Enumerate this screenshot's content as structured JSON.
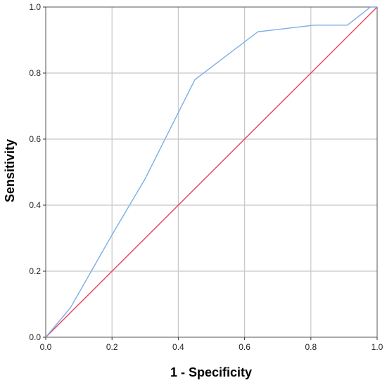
{
  "chart_data": {
    "type": "line",
    "title": "",
    "xlabel": "1 - Specificity",
    "ylabel": "Sensitivity",
    "xlim": [
      0,
      1
    ],
    "ylim": [
      0,
      1
    ],
    "x_ticks": [
      "0.0",
      "0.2",
      "0.4",
      "0.6",
      "0.8",
      "1.0"
    ],
    "y_ticks": [
      "0.0",
      "0.2",
      "0.4",
      "0.6",
      "0.8",
      "1.0"
    ],
    "grid": true,
    "legend": "none",
    "series": [
      {
        "color": "#7aaee8",
        "x": [
          0,
          0.075,
          0.2,
          0.3,
          0.45,
          0.64,
          0.81,
          0.91,
          0.98,
          1.0
        ],
        "y": [
          0,
          0.09,
          0.31,
          0.48,
          0.78,
          0.925,
          0.945,
          0.945,
          1.0,
          1.0
        ]
      },
      {
        "color": "#e6405f",
        "x": [
          0,
          1
        ],
        "y": [
          0,
          1
        ]
      }
    ]
  }
}
